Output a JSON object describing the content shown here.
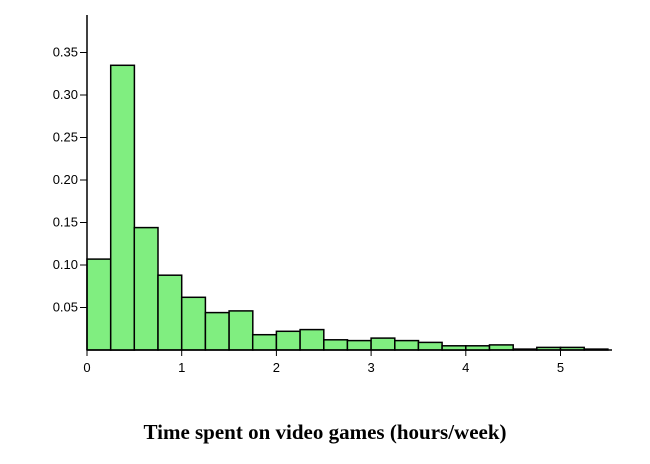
{
  "chart_data": {
    "type": "bar",
    "title": "",
    "xlabel": "Time spent on video games (hours/week)",
    "ylabel": "",
    "bin_width": 0.25,
    "bin_edges_start": [
      0,
      0.25,
      0.5,
      0.75,
      1.0,
      1.25,
      1.5,
      1.75,
      2.0,
      2.25,
      2.5,
      2.75,
      3.0,
      3.25,
      3.5,
      3.75,
      4.0,
      4.25,
      4.5,
      4.75,
      5.0,
      5.25
    ],
    "values": [
      0.107,
      0.335,
      0.144,
      0.088,
      0.062,
      0.044,
      0.046,
      0.018,
      0.022,
      0.024,
      0.012,
      0.011,
      0.014,
      0.011,
      0.009,
      0.005,
      0.005,
      0.006,
      0.001,
      0.003,
      0.003,
      0.001
    ],
    "xlim": [
      0,
      5.5
    ],
    "ylim": [
      0,
      0.375
    ],
    "x_ticks": [
      0,
      1,
      2,
      3,
      4,
      5
    ],
    "x_tick_labels": [
      "0",
      "1",
      "2",
      "3",
      "4",
      "5"
    ],
    "y_ticks": [
      0.05,
      0.1,
      0.15,
      0.2,
      0.25,
      0.3,
      0.35
    ],
    "y_tick_labels": [
      "0.05",
      "0.10",
      "0.15",
      "0.20",
      "0.25",
      "0.30",
      "0.35"
    ],
    "grid": false,
    "bar_color": "#80ee80",
    "edge_color": "#000000"
  }
}
